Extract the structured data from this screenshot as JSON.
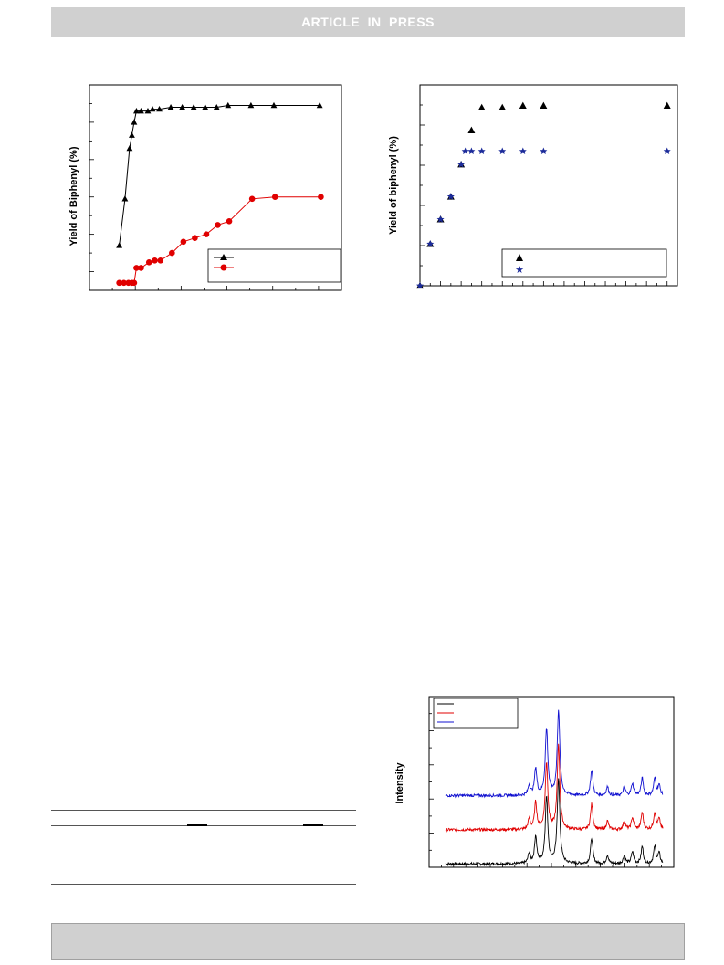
{
  "header": {
    "banner_text": "ARTICLE  IN  PRESS"
  },
  "figures": {
    "fig_a_ylabel": "Yield of Biphenyl (%)",
    "fig_b_ylabel": "Yield of biphenyl (%)",
    "fig_c_ylabel": "Intensity"
  },
  "chart_data": [
    {
      "type": "line",
      "title": "",
      "xlabel": "",
      "ylabel": "Yield of Biphenyl (%)",
      "xlim": [
        0,
        11
      ],
      "ylim": [
        0,
        11
      ],
      "grid": false,
      "legend": "bottom-right",
      "colors": [
        "#000000",
        "#e00000"
      ],
      "series": [
        {
          "marker": "triangle",
          "x": [
            1.3,
            1.55,
            1.75,
            1.85,
            1.95,
            2.05,
            2.25,
            2.55,
            2.75,
            3.05,
            3.55,
            4.05,
            4.55,
            5.05,
            5.55,
            6.05,
            7.05,
            8.05,
            10.05
          ],
          "y": [
            2.4,
            4.9,
            7.6,
            8.3,
            9.0,
            9.6,
            9.6,
            9.6,
            9.7,
            9.7,
            9.8,
            9.8,
            9.8,
            9.8,
            9.8,
            9.9,
            9.9,
            9.9,
            9.9
          ]
        },
        {
          "marker": "circle",
          "x": [
            1.3,
            1.5,
            1.7,
            1.85,
            1.95,
            2.05,
            2.25,
            2.6,
            2.85,
            3.1,
            3.6,
            4.1,
            4.6,
            5.1,
            5.6,
            6.1,
            7.1,
            8.1,
            10.1
          ],
          "y": [
            0.4,
            0.4,
            0.4,
            0.4,
            0.4,
            1.2,
            1.2,
            1.5,
            1.6,
            1.6,
            2.0,
            2.6,
            2.8,
            3.0,
            3.5,
            3.7,
            4.9,
            5.0,
            5.0
          ]
        }
      ]
    },
    {
      "type": "scatter",
      "title": "",
      "xlabel": "",
      "ylabel": "Yield of biphenyl (%)",
      "xlim": [
        0,
        12.5
      ],
      "ylim": [
        0,
        5.3
      ],
      "grid": false,
      "legend": "bottom-right",
      "colors": [
        "#000000",
        "#1c2b9a"
      ],
      "series": [
        {
          "marker": "triangle",
          "x": [
            0,
            0.5,
            1.0,
            1.5,
            2.0,
            2.5,
            3.0,
            4.0,
            5.0,
            6.0,
            12.0
          ],
          "y": [
            0,
            1.1,
            1.75,
            2.35,
            3.2,
            4.1,
            4.7,
            4.7,
            4.75,
            4.75,
            4.75
          ]
        },
        {
          "marker": "star",
          "x": [
            0,
            0.5,
            1.0,
            1.5,
            2.0,
            2.2,
            2.5,
            3.0,
            4.0,
            5.0,
            6.0,
            12.0
          ],
          "y": [
            0,
            1.1,
            1.75,
            2.35,
            3.2,
            3.55,
            3.55,
            3.55,
            3.55,
            3.55,
            3.55,
            3.55
          ]
        }
      ]
    },
    {
      "type": "line",
      "title": "",
      "xlabel": "",
      "ylabel": "Intensity",
      "xlim": [
        5,
        50
      ],
      "ylim": [
        0,
        100
      ],
      "grid": false,
      "legend": "top-left",
      "colors": [
        "#000000",
        "#e00000",
        "#1010d0"
      ],
      "peaks": [
        {
          "x": 23.4,
          "h": 6,
          "w": 0.25
        },
        {
          "x": 24.6,
          "h": 16,
          "w": 0.25
        },
        {
          "x": 26.6,
          "h": 39,
          "w": 0.28
        },
        {
          "x": 28.8,
          "h": 50,
          "w": 0.28
        },
        {
          "x": 34.9,
          "h": 15,
          "w": 0.25
        },
        {
          "x": 37.8,
          "h": 5,
          "w": 0.25
        },
        {
          "x": 40.9,
          "h": 5,
          "w": 0.25
        },
        {
          "x": 42.4,
          "h": 7,
          "w": 0.25
        },
        {
          "x": 44.2,
          "h": 10,
          "w": 0.25
        },
        {
          "x": 46.5,
          "h": 10,
          "w": 0.25
        },
        {
          "x": 47.3,
          "h": 6,
          "w": 0.25
        }
      ],
      "series": [
        {
          "offset": 2,
          "x_range": [
            8,
            48
          ]
        },
        {
          "offset": 22,
          "x_range": [
            8,
            48
          ]
        },
        {
          "offset": 42,
          "x_range": [
            8,
            48
          ]
        }
      ]
    }
  ]
}
